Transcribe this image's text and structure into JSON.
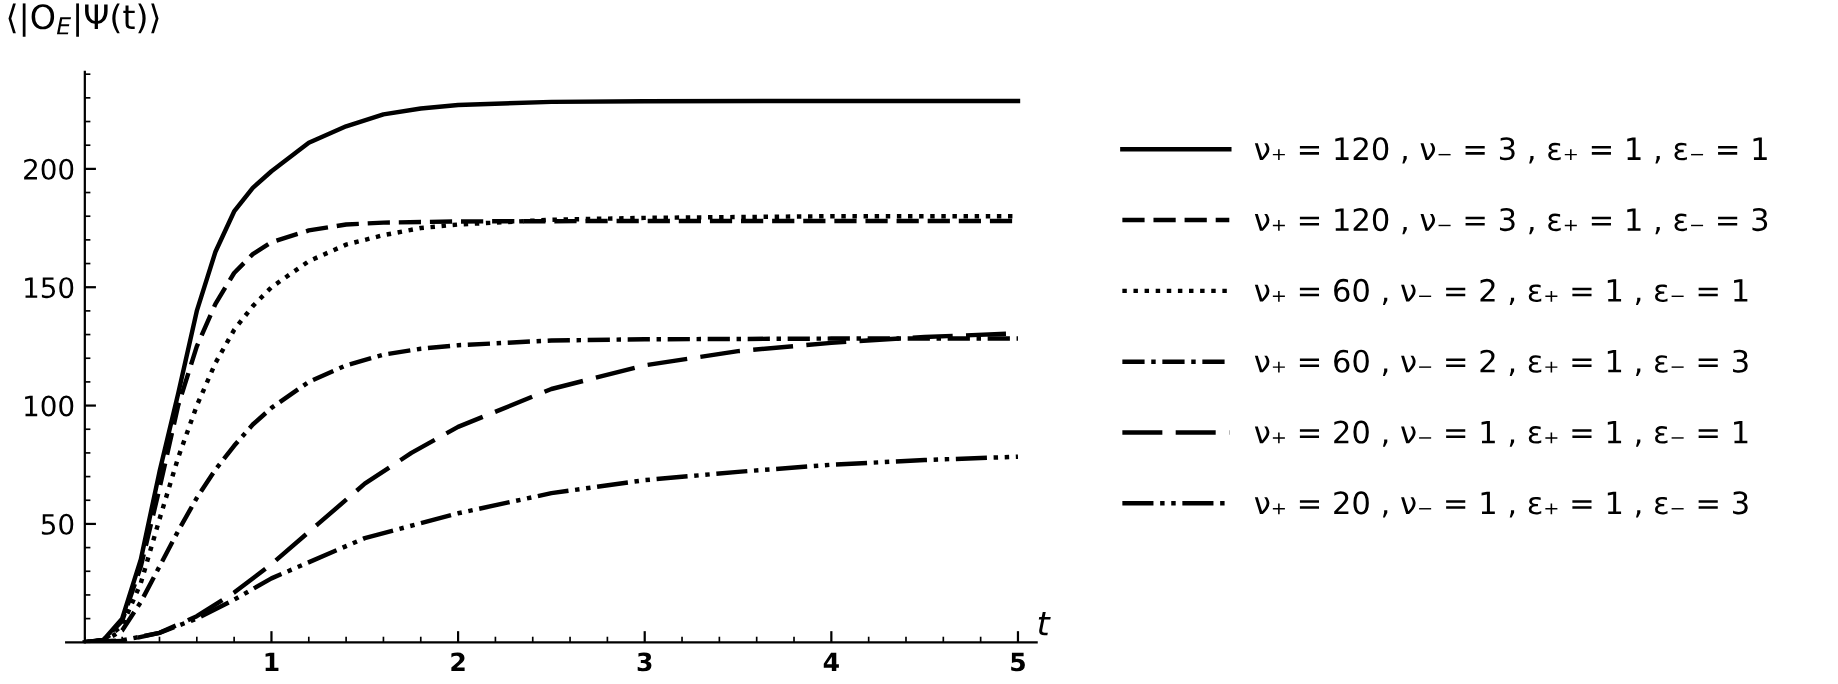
{
  "chart_data": {
    "type": "line",
    "ylabel": "⟨|O$_{E}$|Ψ(t)⟩",
    "xlabel": "t",
    "xlim": [
      -0.1,
      5.1
    ],
    "xticks": [
      1,
      2,
      3,
      4,
      5
    ],
    "ylim": [
      0,
      241
    ],
    "yticks": [
      50,
      100,
      150,
      200
    ],
    "grid": false,
    "legend": "right",
    "marker": "none",
    "series": [
      {
        "name": "ν₊ = 120 , ν₋ = 3 , ε₊ = 1 , ε₋ = 1",
        "color": "#000000",
        "line_style": "solid",
        "x": [
          0,
          0.1,
          0.2,
          0.3,
          0.4,
          0.5,
          0.6,
          0.7,
          0.8,
          0.9,
          1.0,
          1.2,
          1.4,
          1.6,
          1.8,
          2.0,
          2.5,
          3,
          4,
          5
        ],
        "values": [
          0,
          1,
          10,
          35,
          72,
          105,
          140,
          165,
          182,
          192,
          199,
          211,
          218,
          223,
          225.5,
          227,
          228.3,
          228.6,
          228.7,
          228.7
        ]
      },
      {
        "name": "ν₊ = 120 , ν₋ = 3 , ε₊ = 1 , ε₋ = 3",
        "color": "#000000",
        "line_style": "dashed",
        "x": [
          0,
          0.1,
          0.2,
          0.3,
          0.4,
          0.5,
          0.6,
          0.7,
          0.8,
          0.9,
          1.0,
          1.2,
          1.4,
          1.6,
          2,
          3,
          5
        ],
        "values": [
          0,
          1,
          9,
          32,
          65,
          100,
          125,
          143,
          156,
          164,
          169,
          174,
          176.5,
          177.3,
          177.8,
          178,
          178
        ]
      },
      {
        "name": "ν₊ = 60 , ν₋ = 2 , ε₊ = 1 , ε₋ = 1",
        "color": "#000000",
        "line_style": "dotted",
        "x": [
          0,
          0.1,
          0.2,
          0.3,
          0.4,
          0.5,
          0.6,
          0.7,
          0.8,
          0.9,
          1.0,
          1.2,
          1.4,
          1.6,
          1.8,
          2,
          2.5,
          3,
          4,
          5
        ],
        "values": [
          0,
          1,
          7,
          25,
          52,
          78,
          100,
          118,
          132,
          142,
          150,
          161,
          168,
          172,
          175,
          176.5,
          178.5,
          179.3,
          180,
          180
        ]
      },
      {
        "name": "ν₊ = 60 , ν₋ = 2 , ε₊ = 1 , ε₋ = 3",
        "color": "#000000",
        "line_style": "dashdot",
        "x": [
          0,
          0.1,
          0.2,
          0.3,
          0.4,
          0.5,
          0.6,
          0.7,
          0.8,
          0.9,
          1.0,
          1.2,
          1.4,
          1.6,
          1.8,
          2,
          2.5,
          3,
          4,
          5
        ],
        "values": [
          0,
          0.5,
          5,
          17,
          32,
          47,
          61,
          73,
          83,
          92,
          99,
          110,
          117,
          121.5,
          124,
          125.5,
          127.5,
          128,
          128.3,
          128.3
        ]
      },
      {
        "name": "ν₊ = 20 , ν₋ = 1 , ε₊ = 1 , ε₋ = 1",
        "color": "#000000",
        "line_style": "longdash",
        "x": [
          0,
          0.2,
          0.4,
          0.6,
          0.8,
          1.0,
          1.25,
          1.5,
          1.75,
          2,
          2.5,
          3,
          3.5,
          4,
          4.5,
          5
        ],
        "values": [
          0,
          0.5,
          4,
          11,
          21,
          33,
          50,
          67,
          80,
          91,
          107,
          117,
          123,
          126.5,
          129,
          130.5
        ]
      },
      {
        "name": "ν₊ = 20 , ν₋ = 1 , ε₊ = 1 , ε₋ = 3",
        "color": "#000000",
        "line_style": "dashdotdot",
        "x": [
          0,
          0.2,
          0.4,
          0.6,
          0.8,
          1.0,
          1.5,
          2,
          2.5,
          3,
          3.5,
          4,
          4.5,
          5
        ],
        "values": [
          0,
          0.8,
          4,
          10,
          18,
          27,
          44,
          54.5,
          63,
          68.5,
          72,
          75,
          77,
          78.4
        ]
      }
    ]
  }
}
